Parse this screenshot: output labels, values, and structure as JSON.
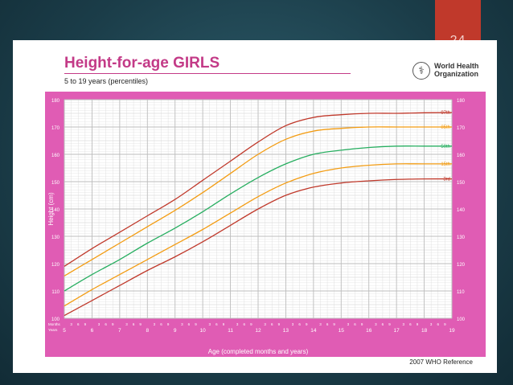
{
  "slide": {
    "number": "24"
  },
  "header": {
    "title": "Height-for-age  GIRLS",
    "subtitle": "5 to 19 years (percentiles)",
    "logo_text": [
      "World Health",
      "Organization"
    ]
  },
  "footer": {
    "reference": "2007 WHO Reference"
  },
  "colors": {
    "frame": "#e05cb4",
    "plot_bg": "#ffffff",
    "grid": "#bdbdbd",
    "p97": "#c0392b",
    "p85": "#f39c12",
    "p50": "#27ae60",
    "p15": "#f39c12",
    "p3": "#c0392b"
  },
  "chart_data": {
    "type": "line",
    "title": "Height-for-age  GIRLS",
    "subtitle": "5 to 19 years (percentiles)",
    "xlabel": "Age (completed months and years)",
    "ylabel": "Height (cm)",
    "xlim": [
      5,
      19
    ],
    "ylim": [
      100,
      180
    ],
    "grid": true,
    "x_ticks": [
      5,
      6,
      7,
      8,
      9,
      10,
      11,
      12,
      13,
      14,
      15,
      16,
      17,
      18,
      19
    ],
    "y_ticks": [
      100,
      110,
      120,
      130,
      140,
      150,
      160,
      170,
      180
    ],
    "months_row_label": "Months",
    "years_row_label": "Years",
    "month_ticks": [
      "3",
      "6",
      "9"
    ],
    "series": [
      {
        "name": "97th",
        "x": [
          5,
          6,
          7,
          8,
          9,
          10,
          11,
          12,
          13,
          14,
          15,
          16,
          17,
          18,
          19
        ],
        "values": [
          119.0,
          125.5,
          131.5,
          137.5,
          143.5,
          150.5,
          157.5,
          164.5,
          170.5,
          173.5,
          174.5,
          175.0,
          175.0,
          175.2,
          175.3
        ]
      },
      {
        "name": "85th",
        "x": [
          5,
          6,
          7,
          8,
          9,
          10,
          11,
          12,
          13,
          14,
          15,
          16,
          17,
          18,
          19
        ],
        "values": [
          115.5,
          121.5,
          127.5,
          133.5,
          139.5,
          146.0,
          153.0,
          160.0,
          165.5,
          168.5,
          169.5,
          170.0,
          170.0,
          170.0,
          170.0
        ]
      },
      {
        "name": "50th",
        "x": [
          5,
          6,
          7,
          8,
          9,
          10,
          11,
          12,
          13,
          14,
          15,
          16,
          17,
          18,
          19
        ],
        "values": [
          110.0,
          116.0,
          121.5,
          127.5,
          133.0,
          139.0,
          145.5,
          151.5,
          156.5,
          160.0,
          161.5,
          162.5,
          163.0,
          163.0,
          163.0
        ]
      },
      {
        "name": "15th",
        "x": [
          5,
          6,
          7,
          8,
          9,
          10,
          11,
          12,
          13,
          14,
          15,
          16,
          17,
          18,
          19
        ],
        "values": [
          104.5,
          110.5,
          116.0,
          121.5,
          127.0,
          132.5,
          138.5,
          144.5,
          149.5,
          153.0,
          155.0,
          156.0,
          156.5,
          156.5,
          156.5
        ]
      },
      {
        "name": "3rd",
        "x": [
          5,
          6,
          7,
          8,
          9,
          10,
          11,
          12,
          13,
          14,
          15,
          16,
          17,
          18,
          19
        ],
        "values": [
          101.0,
          106.5,
          112.0,
          117.5,
          122.5,
          128.0,
          134.0,
          140.0,
          145.0,
          148.0,
          149.5,
          150.3,
          150.8,
          151.0,
          151.0
        ]
      }
    ]
  }
}
